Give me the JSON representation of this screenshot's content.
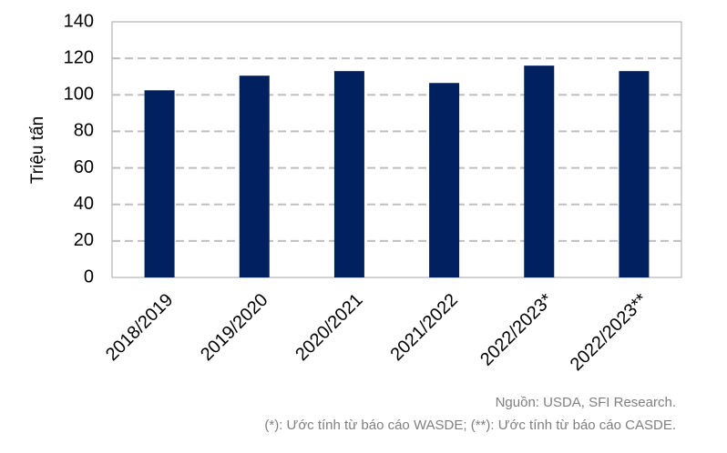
{
  "chart_data": {
    "type": "bar",
    "y_label": "Triệu tấn",
    "categories": [
      "2018/2019",
      "2019/2020",
      "2020/2021",
      "2021/2022",
      "2022/2023*",
      "2022/2023**"
    ],
    "values": [
      102.5,
      110.5,
      113,
      106.5,
      116,
      113
    ],
    "color": "#002060",
    "ylim": [
      0,
      140
    ],
    "yticks": [
      0,
      20,
      40,
      60,
      80,
      100,
      120,
      140
    ],
    "grid": true,
    "annotations": [
      "Nguồn: USDA, SFI Research.",
      "(*): Ước tính từ báo cáo WASDE; (**): Ước tính từ báo cáo CASDE."
    ]
  }
}
